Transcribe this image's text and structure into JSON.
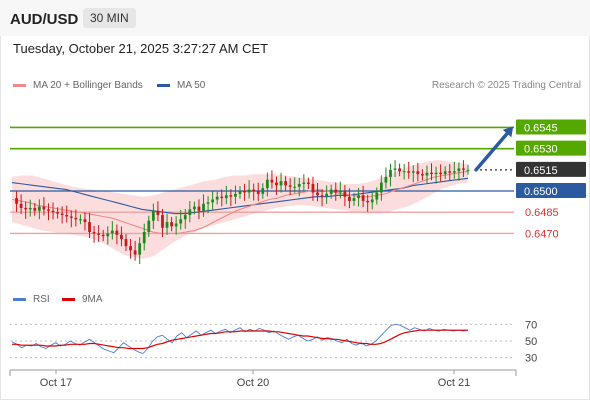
{
  "header": {
    "pair": "AUD/USD",
    "timeframe": "30 MIN"
  },
  "timestamp": "Tuesday, October 21, 2025 3:27:27 AM CET",
  "credit": "Research © 2025 Trading Central",
  "legend": [
    {
      "label": "MA 20 + Bollinger Bands",
      "color": "#f08a8a"
    },
    {
      "label": "MA 50",
      "color": "#2b5aa0"
    }
  ],
  "rsi_legend": [
    {
      "label": "RSI",
      "color": "#4a7fd4"
    },
    {
      "label": "9MA",
      "color": "#dd0000"
    }
  ],
  "chart_data": [
    {
      "type": "line",
      "title": "",
      "ylim": [
        0.6437,
        0.6568
      ],
      "x": [
        "Oct 17",
        "Oct 20",
        "Oct 21"
      ],
      "levels": [
        {
          "value": 0.6545,
          "label": "0.6545",
          "kind": "resistance",
          "color": "#55a800"
        },
        {
          "value": 0.653,
          "label": "0.6530",
          "kind": "resistance",
          "color": "#55a800"
        },
        {
          "value": 0.6515,
          "label": "0.6515",
          "kind": "last",
          "color": "#333333"
        },
        {
          "value": 0.65,
          "label": "0.6500",
          "kind": "pivot",
          "color": "#2b5aa0"
        },
        {
          "value": 0.6485,
          "label": "0.6485",
          "kind": "support",
          "color": "#e84c4c"
        },
        {
          "value": 0.647,
          "label": "0.6470",
          "kind": "support",
          "color": "#e84c4c"
        }
      ],
      "price_series": [
        0.6495,
        0.6491,
        0.6488,
        0.6487,
        0.6488,
        0.6486,
        0.6489,
        0.6487,
        0.6486,
        0.6485,
        0.6484,
        0.6483,
        0.6482,
        0.6481,
        0.648,
        0.648,
        0.6478,
        0.6471,
        0.647,
        0.6469,
        0.6468,
        0.647,
        0.6472,
        0.6469,
        0.6466,
        0.6461,
        0.6458,
        0.6455,
        0.6463,
        0.6471,
        0.6479,
        0.6486,
        0.6483,
        0.6474,
        0.6478,
        0.6475,
        0.6477,
        0.648,
        0.6483,
        0.6487,
        0.6489,
        0.6486,
        0.6491,
        0.6492,
        0.6494,
        0.6496,
        0.6495,
        0.6497,
        0.6496,
        0.6498,
        0.65,
        0.6499,
        0.6501,
        0.65,
        0.6498,
        0.6502,
        0.6508,
        0.6506,
        0.6504,
        0.6507,
        0.6504,
        0.6503,
        0.6503,
        0.6505,
        0.6506,
        0.6505,
        0.6499,
        0.6497,
        0.6496,
        0.6498,
        0.6501,
        0.6499,
        0.65,
        0.6496,
        0.6493,
        0.6495,
        0.6497,
        0.6493,
        0.6492,
        0.6494,
        0.6499,
        0.6506,
        0.651,
        0.6515,
        0.6516,
        0.6514,
        0.6514,
        0.6513,
        0.6514,
        0.6512,
        0.6511,
        0.6513,
        0.6512,
        0.6513,
        0.6512,
        0.6514,
        0.6513,
        0.6514,
        0.6516,
        0.6515,
        0.6515
      ],
      "ma20": [
        0.6494,
        0.6493,
        0.6492,
        0.649,
        0.6489,
        0.6488,
        0.6487,
        0.6486,
        0.6485,
        0.6484,
        0.6483,
        0.6482,
        0.6481,
        0.6479,
        0.6477,
        0.6475,
        0.6473,
        0.6471,
        0.647,
        0.647,
        0.647,
        0.6471,
        0.6472,
        0.6474,
        0.6477,
        0.648,
        0.6483,
        0.6486,
        0.6488,
        0.649,
        0.6492,
        0.6494,
        0.6495,
        0.6497,
        0.6498,
        0.6499,
        0.65,
        0.6501,
        0.65,
        0.6499,
        0.6498,
        0.6497,
        0.6496,
        0.6496,
        0.6497,
        0.6498,
        0.65,
        0.6502,
        0.6504,
        0.6506,
        0.6508,
        0.651,
        0.6511,
        0.6512,
        0.6513,
        0.6514
      ],
      "ma50": [
        0.6506,
        0.6505,
        0.6504,
        0.6503,
        0.6502,
        0.6501,
        0.6499,
        0.6497,
        0.6495,
        0.6493,
        0.6491,
        0.6489,
        0.6487,
        0.6486,
        0.6485,
        0.6484,
        0.6484,
        0.6485,
        0.6486,
        0.6487,
        0.6488,
        0.6489,
        0.649,
        0.6491,
        0.6492,
        0.6493,
        0.6494,
        0.6495,
        0.6496,
        0.6496,
        0.6497,
        0.6497,
        0.6498,
        0.6499,
        0.65,
        0.6501,
        0.6502,
        0.6504,
        0.6505,
        0.6506,
        0.6507,
        0.6508,
        0.6509
      ],
      "bb_upper": [
        0.651,
        0.6511,
        0.6511,
        0.6509,
        0.6507,
        0.6505,
        0.6503,
        0.6502,
        0.6501,
        0.65,
        0.6499,
        0.6498,
        0.6497,
        0.6496,
        0.6497,
        0.6499,
        0.6501,
        0.6503,
        0.6505,
        0.6507,
        0.6508,
        0.651,
        0.6511,
        0.6511,
        0.6512,
        0.6512,
        0.6512,
        0.6511,
        0.651,
        0.6509,
        0.6508,
        0.6507,
        0.6506,
        0.6505,
        0.6505,
        0.6506,
        0.6508,
        0.6511,
        0.6514,
        0.6517,
        0.6519,
        0.6521,
        0.6522,
        0.6521,
        0.652,
        0.6519
      ],
      "bb_lower": [
        0.6478,
        0.6476,
        0.6474,
        0.6472,
        0.6471,
        0.647,
        0.6469,
        0.6468,
        0.6466,
        0.6463,
        0.6459,
        0.6455,
        0.6453,
        0.6452,
        0.6454,
        0.6459,
        0.6464,
        0.6468,
        0.6471,
        0.6474,
        0.6476,
        0.6478,
        0.648,
        0.6482,
        0.6484,
        0.6486,
        0.6488,
        0.6489,
        0.649,
        0.649,
        0.6489,
        0.6488,
        0.6487,
        0.6486,
        0.6485,
        0.6484,
        0.6484,
        0.6485,
        0.6487,
        0.6489,
        0.6492,
        0.6496,
        0.65,
        0.6503,
        0.6505,
        0.6506
      ],
      "projection": {
        "from": 0.6515,
        "to": 0.6545
      }
    },
    {
      "type": "line",
      "title": "RSI",
      "ylim": [
        20,
        80
      ],
      "ticks": [
        70,
        50,
        30
      ],
      "series": [
        {
          "name": "RSI",
          "values": [
            49,
            46,
            42,
            45,
            44,
            47,
            43,
            41,
            45,
            48,
            44,
            46,
            50,
            47,
            45,
            49,
            52,
            48,
            44,
            40,
            38,
            36,
            42,
            48,
            44,
            40,
            37,
            35,
            41,
            50,
            55,
            57,
            52,
            48,
            56,
            60,
            54,
            58,
            62,
            57,
            60,
            63,
            59,
            62,
            64,
            60,
            63,
            66,
            61,
            64,
            62,
            65,
            63,
            60,
            62,
            58,
            55,
            52,
            55,
            57,
            53,
            50,
            52,
            55,
            51,
            54,
            53,
            50,
            48,
            52,
            47,
            45,
            48,
            44,
            46,
            50,
            56,
            62,
            68,
            70,
            69,
            66,
            63,
            66,
            64,
            62,
            65,
            63,
            62,
            64,
            63,
            62,
            63,
            62,
            63
          ]
        },
        {
          "name": "9MA",
          "values": [
            46,
            46,
            45,
            45,
            45,
            45,
            45,
            44,
            44,
            44,
            45,
            45,
            46,
            46,
            46,
            46,
            47,
            47,
            46,
            45,
            44,
            43,
            42,
            42,
            41,
            41,
            41,
            41,
            42,
            44,
            46,
            47,
            49,
            51,
            52,
            53,
            54,
            55,
            56,
            57,
            58,
            59,
            59,
            60,
            61,
            61,
            61,
            62,
            62,
            62,
            62,
            62,
            62,
            62,
            61,
            61,
            60,
            59,
            58,
            57,
            56,
            56,
            55,
            54,
            53,
            53,
            52,
            52,
            51,
            50,
            49,
            48,
            47,
            47,
            46,
            46,
            47,
            49,
            52,
            55,
            58,
            60,
            61,
            62,
            63,
            63,
            63,
            63,
            63,
            63,
            63,
            63,
            63,
            63,
            63
          ]
        }
      ]
    }
  ]
}
